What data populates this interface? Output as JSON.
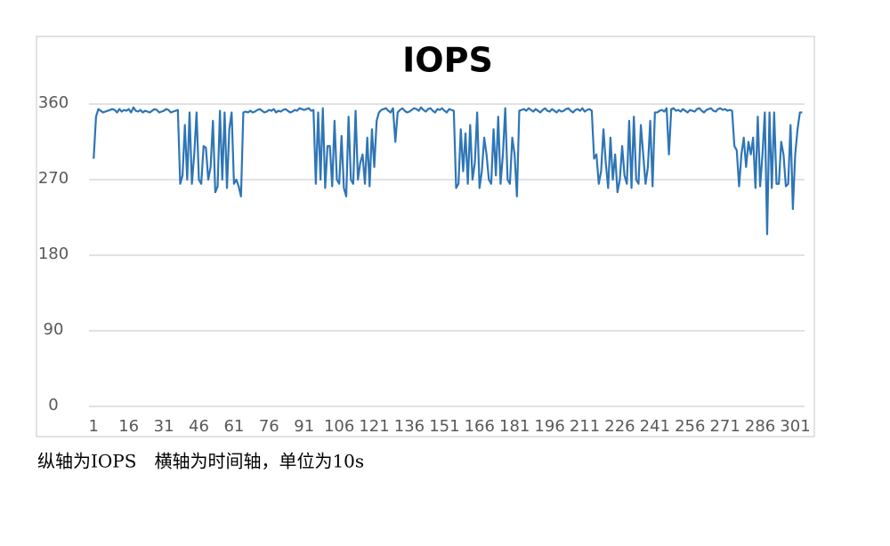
{
  "chart_data": {
    "type": "line",
    "title": "IOPS",
    "caption": "纵轴为IOPS　横轴为时间轴，单位为10s",
    "x": [
      1,
      2,
      3,
      4,
      5,
      6,
      7,
      8,
      9,
      10,
      11,
      12,
      13,
      14,
      15,
      16,
      17,
      18,
      19,
      20,
      21,
      22,
      23,
      24,
      25,
      26,
      27,
      28,
      29,
      30,
      31,
      32,
      33,
      34,
      35,
      36,
      37,
      38,
      39,
      40,
      41,
      42,
      43,
      44,
      45,
      46,
      47,
      48,
      49,
      50,
      51,
      52,
      53,
      54,
      55,
      56,
      57,
      58,
      59,
      60,
      61,
      62,
      63,
      64,
      65,
      66,
      67,
      68,
      69,
      70,
      71,
      72,
      73,
      74,
      75,
      76,
      77,
      78,
      79,
      80,
      81,
      82,
      83,
      84,
      85,
      86,
      87,
      88,
      89,
      90,
      91,
      92,
      93,
      94,
      95,
      96,
      97,
      98,
      99,
      100,
      101,
      102,
      103,
      104,
      105,
      106,
      107,
      108,
      109,
      110,
      111,
      112,
      113,
      114,
      115,
      116,
      117,
      118,
      119,
      120,
      121,
      122,
      123,
      124,
      125,
      126,
      127,
      128,
      129,
      130,
      131,
      132,
      133,
      134,
      135,
      136,
      137,
      138,
      139,
      140,
      141,
      142,
      143,
      144,
      145,
      146,
      147,
      148,
      149,
      150,
      151,
      152,
      153,
      154,
      155,
      156,
      157,
      158,
      159,
      160,
      161,
      162,
      163,
      164,
      165,
      166,
      167,
      168,
      169,
      170,
      171,
      172,
      173,
      174,
      175,
      176,
      177,
      178,
      179,
      180,
      181,
      182,
      183,
      184,
      185,
      186,
      187,
      188,
      189,
      190,
      191,
      192,
      193,
      194,
      195,
      196,
      197,
      198,
      199,
      200,
      201,
      202,
      203,
      204,
      205,
      206,
      207,
      208,
      209,
      210,
      211,
      212,
      213,
      214,
      215,
      216,
      217,
      218,
      219,
      220,
      221,
      222,
      223,
      224,
      225,
      226,
      227,
      228,
      229,
      230,
      231,
      232,
      233,
      234,
      235,
      236,
      237,
      238,
      239,
      240,
      241,
      242,
      243,
      244,
      245,
      246,
      247,
      248,
      249,
      250,
      251,
      252,
      253,
      254,
      255,
      256,
      257,
      258,
      259,
      260,
      261,
      262,
      263,
      264,
      265,
      266,
      267,
      268,
      269,
      270,
      271,
      272,
      273,
      274,
      275,
      276,
      277,
      278,
      279,
      280,
      281,
      282,
      283,
      284,
      285,
      286,
      287,
      288,
      289,
      290,
      291,
      292,
      293,
      294,
      295,
      296,
      297,
      298,
      299,
      300,
      301,
      302,
      303,
      304
    ],
    "series": [
      {
        "name": "IOPS",
        "color": "#2e75b6",
        "values": [
          295,
          345,
          354,
          352,
          350,
          351,
          352,
          353,
          354,
          353,
          350,
          354,
          351,
          353,
          352,
          354,
          350,
          356,
          352,
          351,
          353,
          350,
          352,
          351,
          350,
          352,
          354,
          353,
          350,
          351,
          352,
          354,
          353,
          350,
          351,
          352,
          353,
          265,
          275,
          335,
          270,
          350,
          265,
          300,
          350,
          270,
          265,
          310,
          308,
          270,
          285,
          340,
          255,
          262,
          352,
          270,
          350,
          260,
          330,
          350,
          265,
          270,
          262,
          250,
          350,
          351,
          350,
          352,
          350,
          351,
          353,
          354,
          352,
          350,
          351,
          353,
          352,
          354,
          350,
          352,
          351,
          353,
          354,
          352,
          350,
          351,
          353,
          352,
          355,
          354,
          353,
          354,
          355,
          352,
          353,
          265,
          350,
          270,
          355,
          260,
          310,
          310,
          262,
          340,
          270,
          265,
          322,
          260,
          250,
          345,
          270,
          265,
          352,
          270,
          290,
          300,
          265,
          320,
          262,
          330,
          285,
          340,
          350,
          353,
          354,
          355,
          352,
          350,
          355,
          315,
          350,
          353,
          355,
          352,
          350,
          351,
          353,
          355,
          354,
          352,
          356,
          353,
          351,
          354,
          355,
          352,
          350,
          354,
          353,
          355,
          352,
          350,
          354,
          353,
          352,
          260,
          265,
          330,
          280,
          325,
          265,
          335,
          270,
          290,
          350,
          260,
          280,
          320,
          300,
          270,
          265,
          330,
          275,
          345,
          265,
          300,
          355,
          270,
          265,
          320,
          300,
          250,
          352,
          353,
          354,
          352,
          355,
          353,
          351,
          354,
          352,
          350,
          353,
          355,
          352,
          351,
          354,
          352,
          350,
          353,
          351,
          352,
          354,
          355,
          352,
          350,
          353,
          354,
          352,
          355,
          351,
          353,
          354,
          352,
          295,
          300,
          265,
          280,
          330,
          290,
          260,
          320,
          270,
          300,
          255,
          270,
          310,
          275,
          265,
          340,
          260,
          345,
          270,
          265,
          335,
          300,
          265,
          285,
          340,
          262,
          350,
          350,
          352,
          353,
          351,
          355,
          300,
          354,
          355,
          352,
          353,
          351,
          354,
          352,
          350,
          353,
          352,
          351,
          354,
          355,
          352,
          350,
          353,
          354,
          355,
          352,
          351,
          354,
          355,
          353,
          354,
          352,
          353,
          352,
          310,
          305,
          262,
          300,
          320,
          285,
          315,
          300,
          320,
          260,
          345,
          262,
          300,
          350,
          205,
          350,
          260,
          350,
          265,
          265,
          315,
          300,
          262,
          265,
          335,
          235,
          300,
          330,
          350,
          350
        ]
      }
    ],
    "xlim": [
      -1,
      305
    ],
    "xticks": [
      1,
      16,
      31,
      46,
      61,
      76,
      91,
      106,
      121,
      136,
      151,
      166,
      181,
      196,
      211,
      226,
      241,
      256,
      271,
      286,
      301
    ],
    "ylim": [
      0,
      360
    ],
    "yticks": [
      0,
      90,
      180,
      270,
      360
    ],
    "grid": true
  }
}
